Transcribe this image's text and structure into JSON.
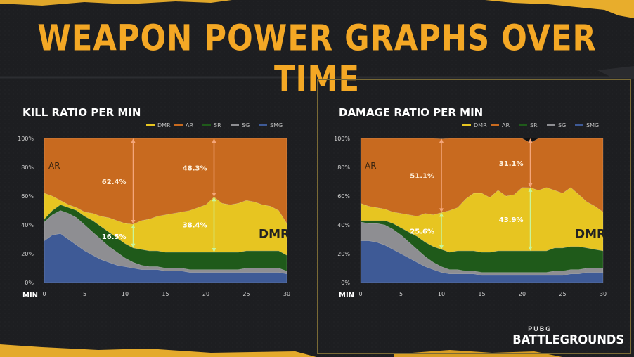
{
  "page": {
    "title": "WEAPON POWER GRAPHS OVER TIME",
    "brand_top": "PUBG",
    "brand_bottom": "BATTLEGROUNDS"
  },
  "colors": {
    "DMR": "#e7c521",
    "AR": "#c86a1f",
    "SR": "#1f5a1a",
    "SG": "#8e8e92",
    "SMG": "#3e5a96",
    "accent": "#f4a825"
  },
  "chart_data": [
    {
      "type": "area",
      "stacked": true,
      "title": "KILL RATIO PER MIN",
      "xlabel": "MIN",
      "ylabel": "",
      "xlim": [
        0,
        30
      ],
      "ylim": [
        0,
        100
      ],
      "xticks": [
        "0",
        "5",
        "10",
        "15",
        "20",
        "25",
        "30"
      ],
      "yticks": [
        "0%",
        "20%",
        "40%",
        "60%",
        "80%",
        "100%"
      ],
      "legend": [
        "DMR",
        "AR",
        "SR",
        "SG",
        "SMG"
      ],
      "legend_position": "top-right",
      "x": [
        0,
        1,
        2,
        3,
        4,
        5,
        6,
        7,
        8,
        9,
        10,
        11,
        12,
        13,
        14,
        15,
        16,
        17,
        18,
        19,
        20,
        21,
        22,
        23,
        24,
        25,
        26,
        27,
        28,
        29,
        30
      ],
      "series": [
        {
          "name": "SMG",
          "values": [
            29,
            33,
            34,
            30,
            26,
            22,
            19,
            16,
            14,
            12,
            11,
            10,
            9,
            9,
            9,
            8,
            8,
            8,
            7,
            7,
            7,
            7,
            7,
            7,
            7,
            7,
            7,
            7,
            7,
            7,
            6
          ]
        },
        {
          "name": "SG",
          "values": [
            13,
            14,
            16,
            18,
            19,
            18,
            16,
            14,
            11,
            9,
            6,
            4,
            3,
            2,
            2,
            2,
            2,
            2,
            2,
            2,
            2,
            2,
            2,
            2,
            2,
            3,
            3,
            3,
            3,
            3,
            2
          ]
        },
        {
          "name": "SR",
          "values": [
            2,
            3,
            4,
            4,
            5,
            6,
            8,
            9,
            10,
            10,
            10,
            10,
            11,
            11,
            11,
            11,
            11,
            11,
            12,
            12,
            12,
            12,
            12,
            12,
            12,
            12,
            12,
            12,
            12,
            12,
            11
          ]
        },
        {
          "name": "DMR",
          "values": [
            18,
            10,
            3,
            2,
            2,
            3,
            5,
            7,
            10,
            12,
            14,
            16.5,
            20,
            22,
            24,
            26,
            27,
            28,
            29,
            31,
            33,
            38.4,
            34,
            33,
            34,
            35,
            34,
            32,
            31,
            28,
            22
          ]
        },
        {
          "name": "AR",
          "values": [
            38,
            40,
            43,
            46,
            48,
            51,
            52,
            54,
            55,
            57,
            59,
            62.4,
            58,
            56,
            54,
            53,
            52,
            51,
            50,
            48,
            46,
            48.3,
            45,
            46,
            45,
            43,
            44,
            46,
            47,
            50,
            59
          ]
        }
      ],
      "annotations": [
        {
          "x": 11,
          "label": "62.4%",
          "series": "AR",
          "value": 62.4
        },
        {
          "x": 11,
          "label": "16.5%",
          "series": "DMR",
          "value": 16.5
        },
        {
          "x": 21,
          "label": "48.3%",
          "series": "AR",
          "value": 48.3
        },
        {
          "x": 21,
          "label": "38.4%",
          "series": "DMR",
          "value": 38.4
        }
      ],
      "area_labels": [
        "AR",
        "DMR"
      ]
    },
    {
      "type": "area",
      "stacked": true,
      "title": "DAMAGE RATIO PER MIN",
      "xlabel": "MIN",
      "ylabel": "",
      "xlim": [
        0,
        30
      ],
      "ylim": [
        0,
        100
      ],
      "xticks": [
        "0",
        "5",
        "10",
        "15",
        "20",
        "25",
        "30"
      ],
      "yticks": [
        "0%",
        "20%",
        "40%",
        "60%",
        "80%",
        "100%"
      ],
      "legend": [
        "DMR",
        "AR",
        "SR",
        "SG",
        "SMG"
      ],
      "legend_position": "top-right",
      "x": [
        0,
        1,
        2,
        3,
        4,
        5,
        6,
        7,
        8,
        9,
        10,
        11,
        12,
        13,
        14,
        15,
        16,
        17,
        18,
        19,
        20,
        21,
        22,
        23,
        24,
        25,
        26,
        27,
        28,
        29,
        30
      ],
      "series": [
        {
          "name": "SMG",
          "values": [
            29,
            29,
            28,
            26,
            23,
            20,
            17,
            14,
            11,
            9,
            7,
            6,
            6,
            6,
            6,
            5,
            5,
            5,
            5,
            5,
            5,
            5,
            5,
            5,
            5,
            5,
            6,
            6,
            7,
            7,
            7
          ]
        },
        {
          "name": "SG",
          "values": [
            13,
            12,
            13,
            14,
            14,
            13,
            11,
            9,
            7,
            5,
            4,
            3,
            3,
            2,
            2,
            2,
            2,
            2,
            2,
            2,
            2,
            2,
            2,
            2,
            3,
            3,
            3,
            3,
            3,
            3,
            3
          ]
        },
        {
          "name": "SR",
          "values": [
            1,
            2,
            2,
            3,
            4,
            5,
            7,
            9,
            10,
            11,
            12,
            12,
            13,
            14,
            14,
            14,
            14,
            15,
            15,
            15,
            15,
            15,
            15,
            15,
            16,
            16,
            16,
            16,
            14,
            13,
            12
          ]
        },
        {
          "name": "DMR",
          "values": [
            12,
            10,
            9,
            8,
            8,
            10,
            12,
            14,
            20,
            22,
            25.6,
            29,
            30,
            36,
            40,
            41,
            38,
            42,
            38,
            39,
            44,
            43.9,
            42,
            44,
            40,
            38,
            41,
            36,
            32,
            30,
            27
          ]
        },
        {
          "name": "AR",
          "values": [
            45,
            47,
            48,
            49,
            51,
            52,
            53,
            54,
            52,
            53,
            51.1,
            50,
            48,
            42,
            38,
            38,
            41,
            36,
            40,
            39,
            34,
            31.1,
            36,
            34,
            36,
            38,
            34,
            39,
            44,
            47,
            51
          ]
        }
      ],
      "annotations": [
        {
          "x": 10,
          "label": "51.1%",
          "series": "AR",
          "value": 51.1
        },
        {
          "x": 10,
          "label": "25.6%",
          "series": "DMR",
          "value": 25.6
        },
        {
          "x": 21,
          "label": "31.1%",
          "series": "AR",
          "value": 31.1
        },
        {
          "x": 21,
          "label": "43.9%",
          "series": "DMR",
          "value": 43.9
        }
      ],
      "area_labels": [
        "AR",
        "DMR"
      ]
    }
  ]
}
